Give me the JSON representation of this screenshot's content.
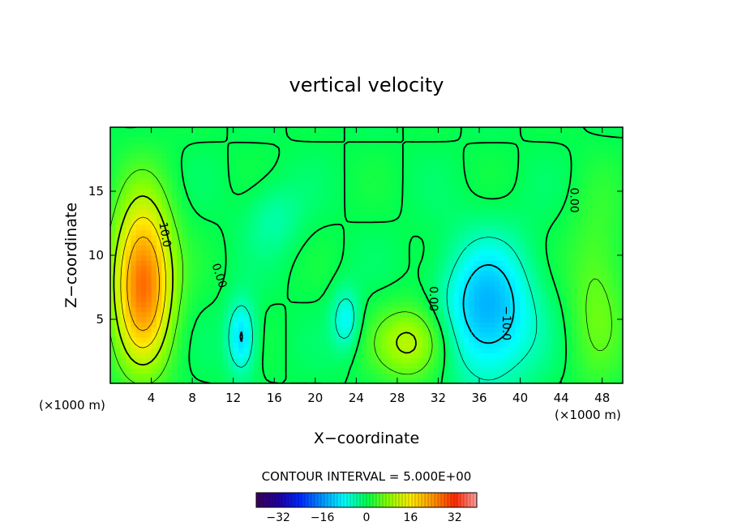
{
  "chart_data": {
    "type": "heatmap",
    "title": "vertical velocity",
    "xlabel": "X−coordinate",
    "ylabel": "Z−coordinate",
    "x_unit_left": "(×1000 m)",
    "x_unit_right": "(×1000 m)",
    "xlim": [
      0,
      50
    ],
    "ylim": [
      0,
      20
    ],
    "x_ticks": [
      4,
      8,
      12,
      16,
      20,
      24,
      28,
      32,
      36,
      40,
      44,
      48
    ],
    "y_ticks": [
      5,
      10,
      15
    ],
    "contour_interval_text": "CONTOUR INTERVAL = 5.000E+00",
    "colorbar": {
      "range": [
        -40,
        40
      ],
      "ticks": [
        -32,
        -16,
        0,
        16,
        32
      ],
      "tick_labels": [
        "−32",
        "−16",
        "0",
        "16",
        "32"
      ]
    },
    "contour_labels": [
      {
        "text": "10.0",
        "x": 5.3,
        "y": 11.6,
        "angle": 80
      },
      {
        "text": "0.00",
        "x": 10.6,
        "y": 8.4,
        "angle": 72
      },
      {
        "text": "0.00",
        "x": 31.5,
        "y": 6.6,
        "angle": 90
      },
      {
        "text": "−10.0",
        "x": 38.6,
        "y": 4.7,
        "angle": 90
      },
      {
        "text": "0.00",
        "x": 45.2,
        "y": 14.3,
        "angle": 90
      }
    ],
    "features": [
      {
        "name": "updraft core",
        "cx": 3.2,
        "cy": 8.0,
        "sx": 2.0,
        "sy": 4.4,
        "amp": 28
      },
      {
        "name": "updraft",
        "cx": 29.5,
        "cy": 3.2,
        "sx": 2.5,
        "sy": 2.0,
        "amp": 12
      },
      {
        "name": "downdraft",
        "cx": 36.8,
        "cy": 5.6,
        "sx": 3.2,
        "sy": 3.8,
        "amp": -14
      },
      {
        "name": "downdraft",
        "cx": 12.8,
        "cy": 3.6,
        "sx": 1.0,
        "sy": 2.0,
        "amp": -11
      },
      {
        "name": "downdraft",
        "cx": 23.0,
        "cy": 5.0,
        "sx": 1.0,
        "sy": 1.7,
        "amp": -8
      },
      {
        "name": "updraft",
        "cx": 47.5,
        "cy": 7.0,
        "sx": 2.0,
        "sy": 5.0,
        "amp": 6
      },
      {
        "name": "downdraft",
        "cx": 16.0,
        "cy": 13.0,
        "sx": 2.0,
        "sy": 2.0,
        "amp": -4
      }
    ]
  }
}
